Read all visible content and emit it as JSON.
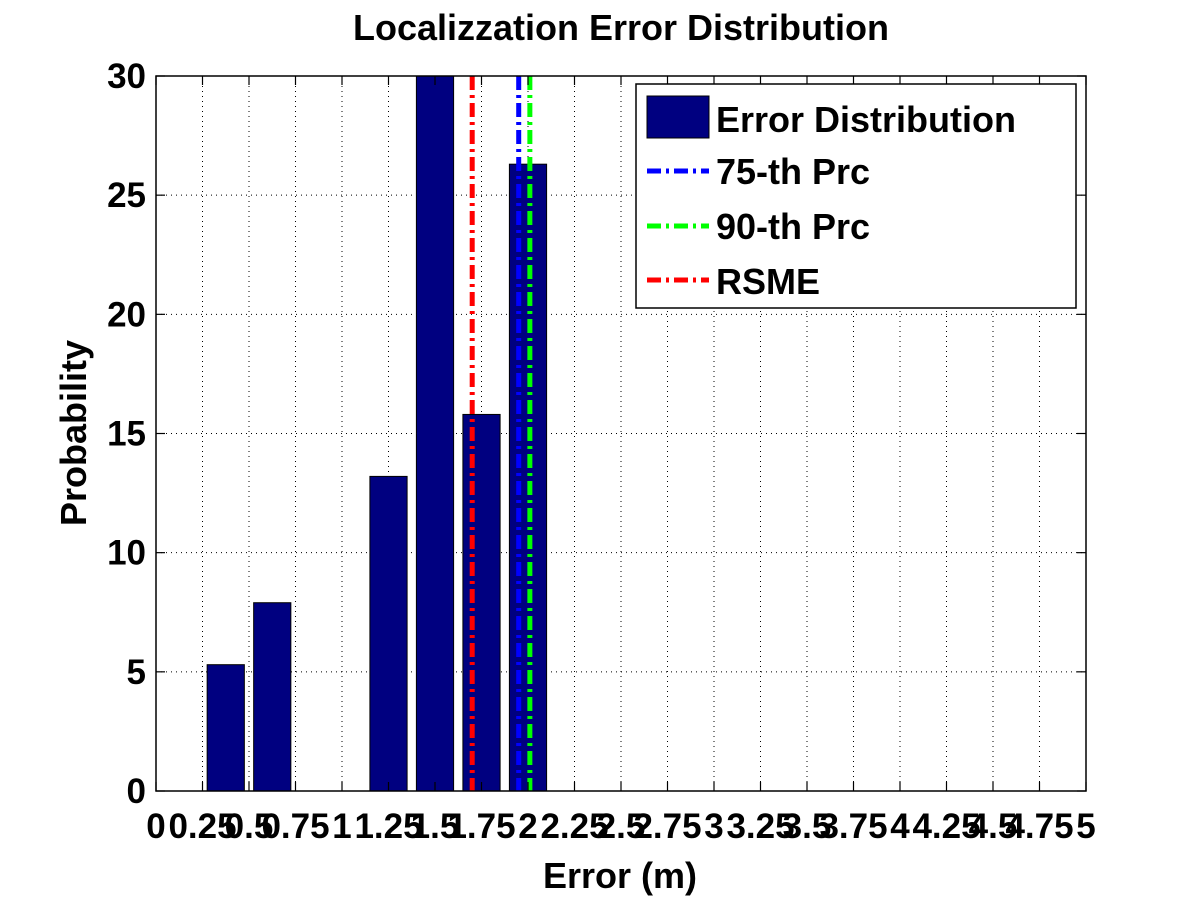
{
  "chart_data": {
    "type": "bar",
    "title": "Localizzation Error Distribution",
    "xlabel": "Error (m)",
    "ylabel": "Probability",
    "xlim": [
      0,
      5
    ],
    "ylim": [
      0,
      30
    ],
    "xticks": [
      0,
      0.25,
      0.5,
      0.75,
      1,
      1.25,
      1.5,
      1.75,
      2,
      2.25,
      2.5,
      2.75,
      3,
      3.25,
      3.5,
      3.75,
      4,
      4.25,
      4.5,
      4.75,
      5
    ],
    "xtick_labels": [
      "0",
      "0.25",
      "0.5",
      "0.75",
      "1",
      "1.25",
      "1.5",
      "1.75",
      "2",
      "2.25",
      "2.5",
      "2.75",
      "3",
      "3.25",
      "3.5",
      "3.75",
      "4",
      "4.25",
      "4.5",
      "4.75",
      "5"
    ],
    "yticks": [
      0,
      5,
      10,
      15,
      20,
      25,
      30
    ],
    "ytick_labels": [
      "0",
      "5",
      "10",
      "15",
      "20",
      "25",
      "30"
    ],
    "grid": true,
    "legend_position": "top-right",
    "bar_width": 0.2,
    "series": [
      {
        "name": "Error Distribution",
        "color": "#000080",
        "x": [
          0.25,
          0.375,
          0.625,
          1.25,
          1.5,
          1.75,
          2.0
        ],
        "values": [
          0,
          5.3,
          7.9,
          13.2,
          30,
          15.8,
          26.3
        ]
      }
    ],
    "reference_lines": [
      {
        "name": "75-th Prc",
        "color": "#0000ff",
        "x": 1.95
      },
      {
        "name": "90-th Prc",
        "color": "#00ff00",
        "x": 2.01
      },
      {
        "name": "RSME",
        "color": "#ff0000",
        "x": 1.7
      }
    ]
  }
}
